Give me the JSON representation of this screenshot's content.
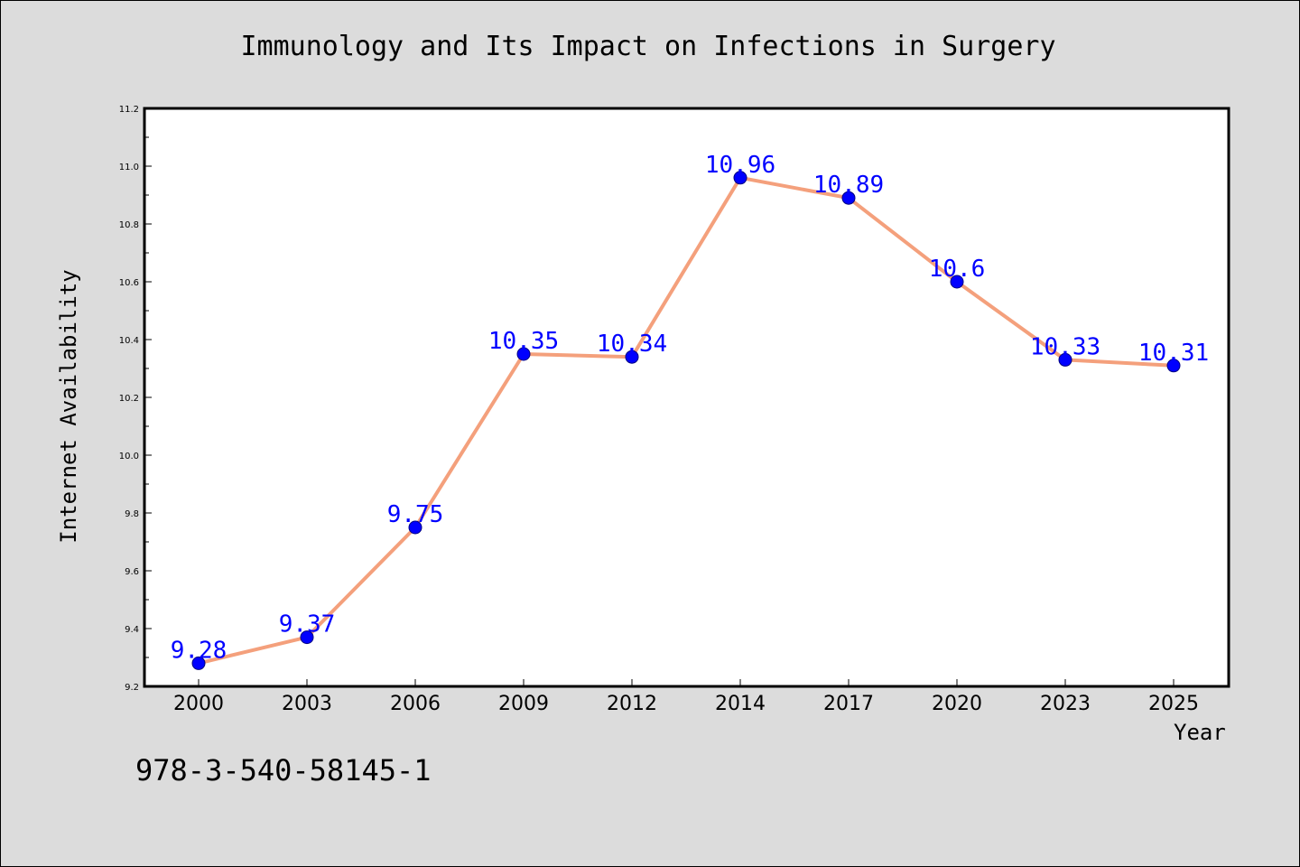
{
  "chart_data": {
    "type": "line",
    "title": "Immunology and Its Impact on Infections in Surgery",
    "xlabel": "Year",
    "ylabel": "Internet Availability",
    "categories": [
      "2000",
      "2003",
      "2006",
      "2009",
      "2012",
      "2014",
      "2017",
      "2020",
      "2023",
      "2025"
    ],
    "series": [
      {
        "values": [
          9.28,
          9.37,
          9.75,
          10.35,
          10.34,
          10.96,
          10.89,
          10.6,
          10.33,
          10.31
        ],
        "labels": [
          "9.28",
          "9.37",
          "9.75",
          "10.35",
          "10.34",
          "10.96",
          "10.89",
          "10.6",
          "10.33",
          "10.31"
        ]
      }
    ],
    "ylim": [
      9.2,
      11.2
    ],
    "yticks": [
      "9.2",
      "9.4",
      "9.6",
      "9.8",
      "10.0",
      "10.2",
      "10.4",
      "10.6",
      "10.8",
      "11.0",
      "11.2"
    ],
    "grid": false,
    "legend": "none",
    "colors": {
      "line": "#f4a07c",
      "marker": "#0000ff",
      "marker_edge": "#000080",
      "data_label": "#0000ff",
      "plot_background": "#ffffff",
      "figure_background": "#dcdcdc"
    }
  },
  "footer": {
    "isbn": "978-3-540-58145-1"
  }
}
